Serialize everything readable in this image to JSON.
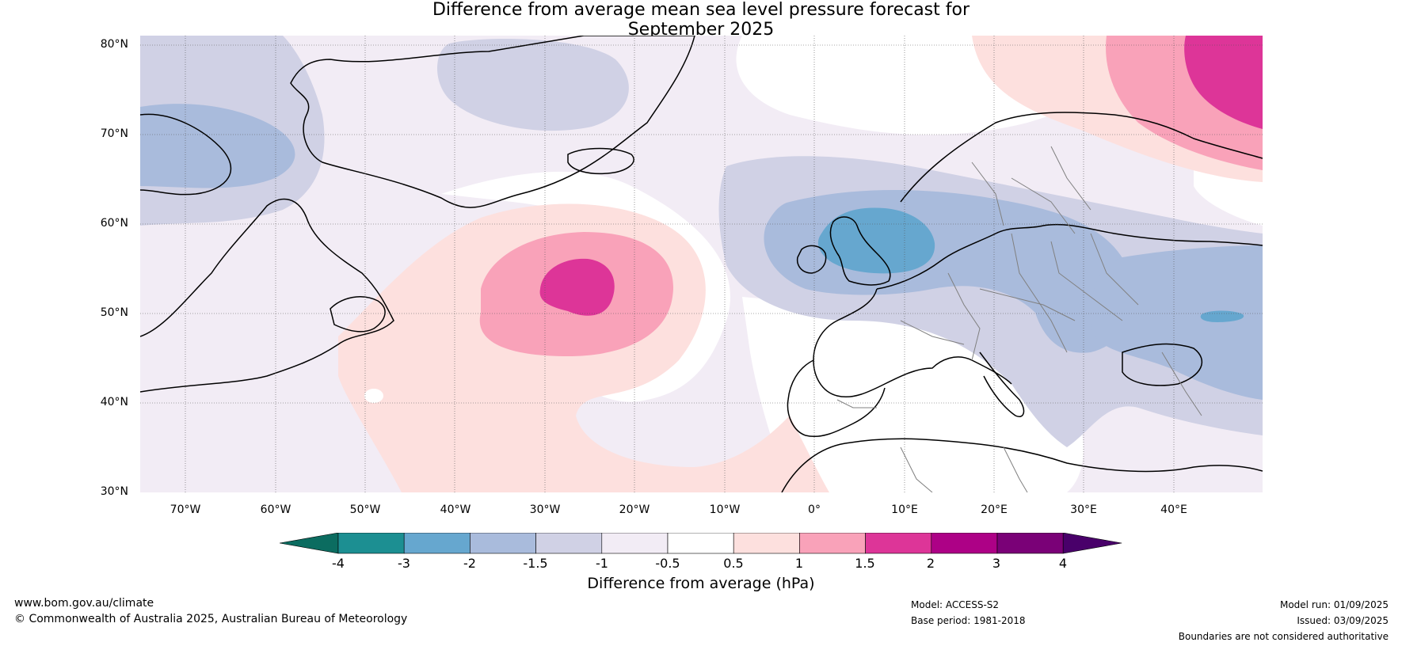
{
  "title": {
    "line1": "Difference from average mean sea level pressure forecast for",
    "line2": "September 2025"
  },
  "map": {
    "region": "North Atlantic and Europe",
    "lat_labels": [
      "80°N",
      "70°N",
      "60°N",
      "50°N",
      "40°N",
      "30°N"
    ],
    "lon_labels": [
      "70°W",
      "60°W",
      "50°W",
      "40°W",
      "30°W",
      "20°W",
      "10°W",
      "0°",
      "10°E",
      "20°E",
      "30°E",
      "40°E"
    ],
    "colors": {
      "land_outline": "#000000",
      "border_lines": "#808080",
      "gridline": "#555555"
    }
  },
  "colorbar": {
    "ticks": [
      "-4",
      "-3",
      "-2",
      "-1.5",
      "-1",
      "-0.5",
      "0.5",
      "1",
      "1.5",
      "2",
      "3",
      "4"
    ],
    "colors": [
      "#1c8f92",
      "#66a7cf",
      "#a9bbdc",
      "#d0d1e5",
      "#f2ecf5",
      "#ffffff",
      "#fde0de",
      "#f9a2b9",
      "#dd3598",
      "#ad0186",
      "#7a0177"
    ],
    "under_color": "#0b6c60",
    "over_color": "#49006a",
    "label": "Difference from average (hPa)"
  },
  "footer": {
    "website": "www.bom.gov.au/climate",
    "copyright": "© Commonwealth of Australia 2025, Australian Bureau of Meteorology",
    "model": "Model: ACCESS-S2",
    "base_period": "Base period: 1981-2018",
    "model_run": "Model run: 01/09/2025",
    "issued": "Issued: 03/09/2025",
    "disclaimer": "Boundaries are not considered authoritative"
  }
}
